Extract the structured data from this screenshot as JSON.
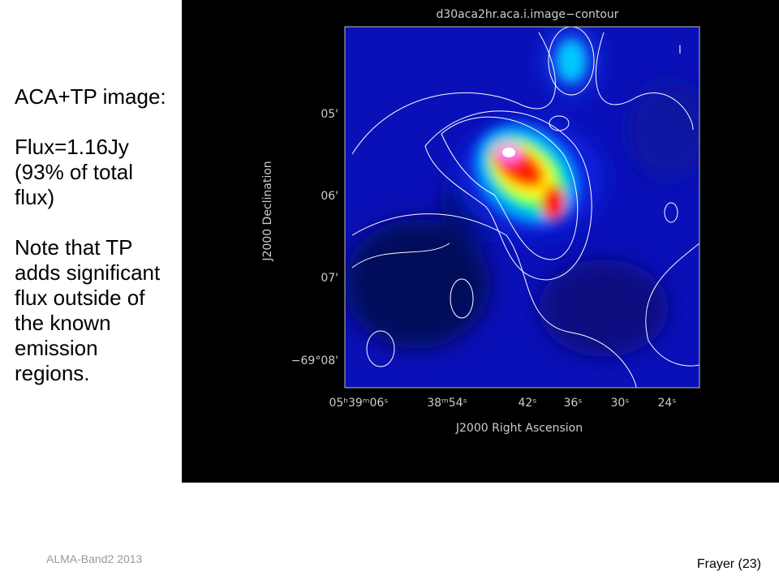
{
  "slide": {
    "text": {
      "paragraphs": [
        "ACA+TP image:",
        "Flux=1.16Jy (93% of total flux)",
        "Note that TP adds significant flux outside of the known emission regions."
      ]
    },
    "image": {
      "title": "d30aca2hr.aca.i.image−contour",
      "corner_label": "I",
      "y_label": "J2000 Declination",
      "x_label": "J2000 Right Ascension",
      "y_tick_labels": [
        "05'",
        "06'",
        "07'",
        "−69°08'"
      ],
      "x_tick_labels": [
        "05ʰ39ᵐ06ˢ",
        "38ᵐ54ˢ",
        "42ˢ",
        "36ˢ",
        "30ˢ",
        "24ˢ"
      ]
    },
    "footer": {
      "left": "ALMA-Band2 2013",
      "right": "Frayer  (23)"
    }
  }
}
